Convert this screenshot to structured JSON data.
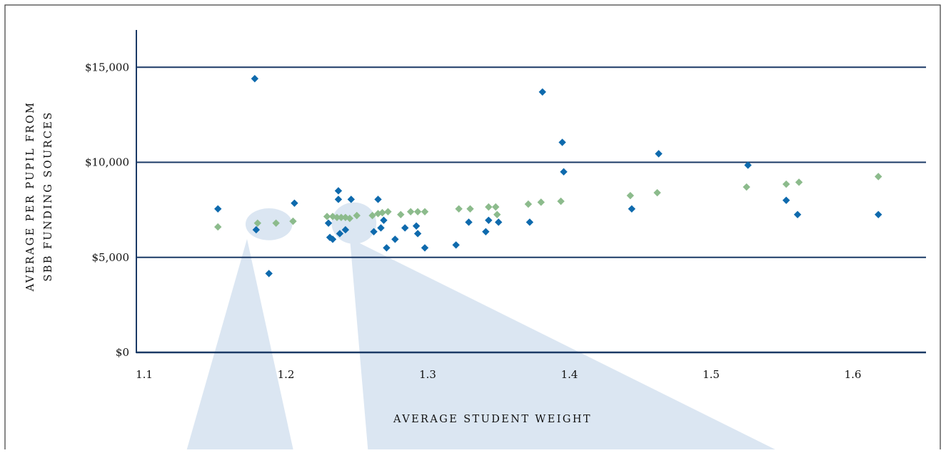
{
  "chart_data": {
    "type": "scatter",
    "xlabel": "AVERAGE STUDENT WEIGHT",
    "ylabel_lines": [
      "AVERAGE PER PUPIL FROM",
      "SBB FUNDING SOURCES"
    ],
    "x_ticks": [
      "1.1",
      "1.2",
      "1.3",
      "1.4",
      "1.5",
      "1.6"
    ],
    "y_ticks": [
      "$0",
      "$5,000",
      "$10,000",
      "$15,000"
    ],
    "xlim": [
      1.1,
      1.65
    ],
    "ylim": [
      0,
      17000
    ],
    "grid": "horizontal",
    "colors": {
      "series_1": "#0e6aad",
      "series_2": "#8cbb8c",
      "gridline": "#1b3a66",
      "callout": "#dbe6f2",
      "frame": "#3a3a3a"
    },
    "series": [
      {
        "color": "#0e6aad",
        "points": [
          [
            1.152,
            7550
          ],
          [
            1.178,
            14400
          ],
          [
            1.179,
            6450
          ],
          [
            1.188,
            4150
          ],
          [
            1.206,
            7850
          ],
          [
            1.23,
            6800
          ],
          [
            1.231,
            6050
          ],
          [
            1.233,
            5950
          ],
          [
            1.237,
            8500
          ],
          [
            1.237,
            8050
          ],
          [
            1.238,
            6250
          ],
          [
            1.242,
            6450
          ],
          [
            1.246,
            8050
          ],
          [
            1.262,
            6350
          ],
          [
            1.265,
            8050
          ],
          [
            1.267,
            6550
          ],
          [
            1.269,
            6950
          ],
          [
            1.271,
            5500
          ],
          [
            1.277,
            5950
          ],
          [
            1.284,
            6550
          ],
          [
            1.292,
            6650
          ],
          [
            1.293,
            6250
          ],
          [
            1.298,
            5500
          ],
          [
            1.32,
            5650
          ],
          [
            1.329,
            6850
          ],
          [
            1.341,
            6350
          ],
          [
            1.343,
            6950
          ],
          [
            1.35,
            6850
          ],
          [
            1.372,
            6850
          ],
          [
            1.381,
            13700
          ],
          [
            1.395,
            11050
          ],
          [
            1.396,
            9500
          ],
          [
            1.444,
            7550
          ],
          [
            1.463,
            10450
          ],
          [
            1.526,
            9850
          ],
          [
            1.553,
            8000
          ],
          [
            1.561,
            7250
          ],
          [
            1.618,
            7250
          ]
        ]
      },
      {
        "color": "#8cbb8c",
        "points": [
          [
            1.152,
            6600
          ],
          [
            1.18,
            6800
          ],
          [
            1.193,
            6800
          ],
          [
            1.205,
            6900
          ],
          [
            1.229,
            7150
          ],
          [
            1.233,
            7150
          ],
          [
            1.236,
            7100
          ],
          [
            1.239,
            7100
          ],
          [
            1.242,
            7100
          ],
          [
            1.245,
            7050
          ],
          [
            1.25,
            7200
          ],
          [
            1.261,
            7200
          ],
          [
            1.265,
            7300
          ],
          [
            1.268,
            7350
          ],
          [
            1.272,
            7400
          ],
          [
            1.281,
            7250
          ],
          [
            1.288,
            7400
          ],
          [
            1.293,
            7400
          ],
          [
            1.298,
            7400
          ],
          [
            1.322,
            7550
          ],
          [
            1.33,
            7550
          ],
          [
            1.343,
            7650
          ],
          [
            1.348,
            7650
          ],
          [
            1.349,
            7250
          ],
          [
            1.371,
            7800
          ],
          [
            1.38,
            7900
          ],
          [
            1.394,
            7950
          ],
          [
            1.443,
            8250
          ],
          [
            1.462,
            8400
          ],
          [
            1.525,
            8700
          ],
          [
            1.553,
            8850
          ],
          [
            1.562,
            8950
          ],
          [
            1.618,
            9250
          ]
        ]
      }
    ],
    "callouts": [
      {
        "center": [
          1.188,
          6740
        ],
        "rx": 0.0165,
        "ry": 840
      },
      {
        "center": [
          1.248,
          6800
        ],
        "rx": 0.0158,
        "ry": 1090
      }
    ]
  }
}
